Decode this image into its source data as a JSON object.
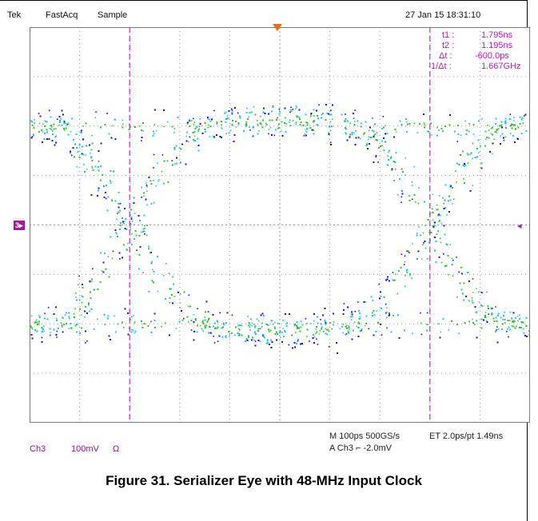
{
  "header": {
    "brand": "Tek",
    "mode": "FastAcq",
    "acq": "Sample",
    "datetime": "27 Jan 15 18:31:10"
  },
  "cursors": {
    "t1_label": "t1 :",
    "t1_value": "1.795ns",
    "t2_label": "t2 :",
    "t2_value": "1.195ns",
    "dt_label": "Δt :",
    "dt_value": "-600.0ps",
    "inv_label": "1/Δt :",
    "inv_value": "1.667GHz"
  },
  "channel_marker": "3",
  "footer": {
    "channel": "Ch3",
    "scale": "100mV",
    "coupling": "Ω",
    "timebase": "M 100ps 500GS/s",
    "sampling": "ET 2.0ps/pt 1.49ns",
    "trigger": "A  Ch3  ⌐  -2.0mV"
  },
  "caption": "Figure 31. Serializer Eye with 48-MHz Input Clock",
  "colors": {
    "trace_low": "#1010e0",
    "trace_mid": "#18c8e0",
    "trace_high": "#30c020",
    "cursor": "#c030c0",
    "grid": "#9a9a9a"
  },
  "chart_data": {
    "type": "scatter",
    "title": "",
    "xlabel": "",
    "ylabel": "",
    "x_unit": "ps",
    "y_unit": "mV",
    "xlim": [
      -500,
      500
    ],
    "ylim": [
      -400,
      400
    ],
    "grid": true,
    "x_divisions": 10,
    "y_divisions": 8,
    "signal_levels_mV": [
      -200,
      200
    ],
    "crossing_times_ps": [
      -300,
      300
    ],
    "cursor_times_ps": [
      -300,
      300
    ]
  }
}
